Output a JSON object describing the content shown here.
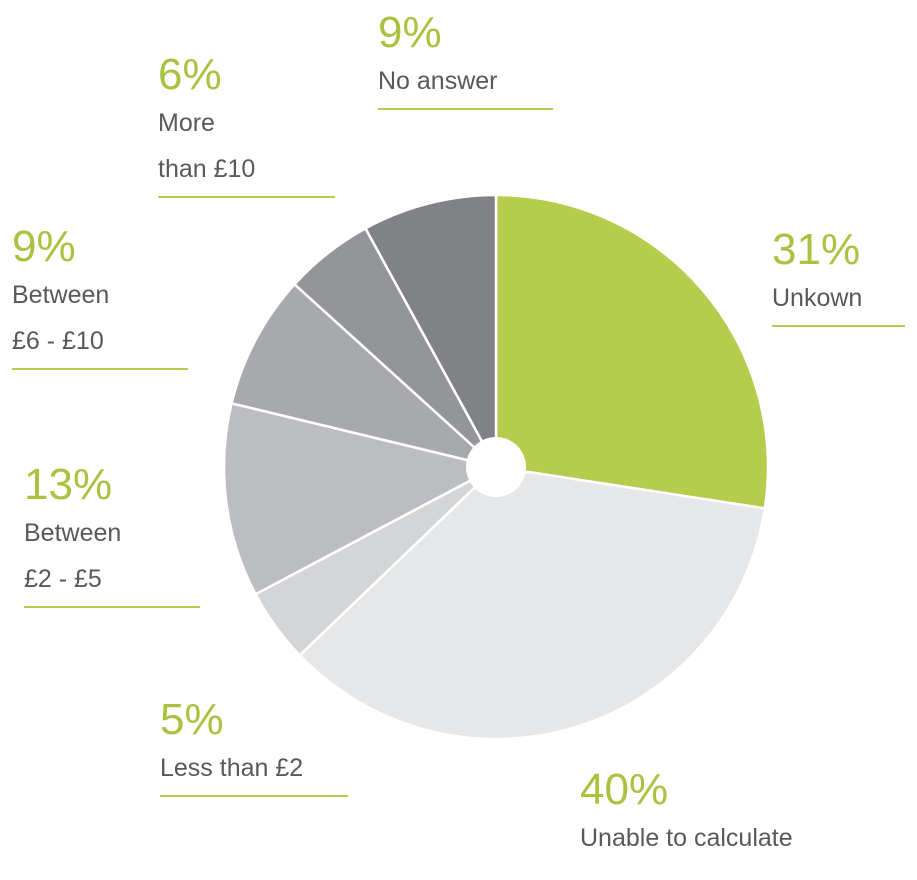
{
  "chart_data": {
    "type": "pie",
    "categories": [
      "Unkown",
      "Unable to calculate",
      "Less than £2",
      "Between\n£2 - £5",
      "Between\n£6 - £10",
      "More\nthan £10",
      "No answer"
    ],
    "values": [
      31,
      40,
      5,
      13,
      9,
      6,
      9
    ],
    "value_labels": [
      "31%",
      "40%",
      "5%",
      "13%",
      "9%",
      "6%",
      "9%"
    ],
    "colors": [
      "#b5cc4d",
      "#e6e7e8",
      "#d4d5d7",
      "#bcbdc0",
      "#a7a9ac",
      "#939598",
      "#808285"
    ]
  }
}
